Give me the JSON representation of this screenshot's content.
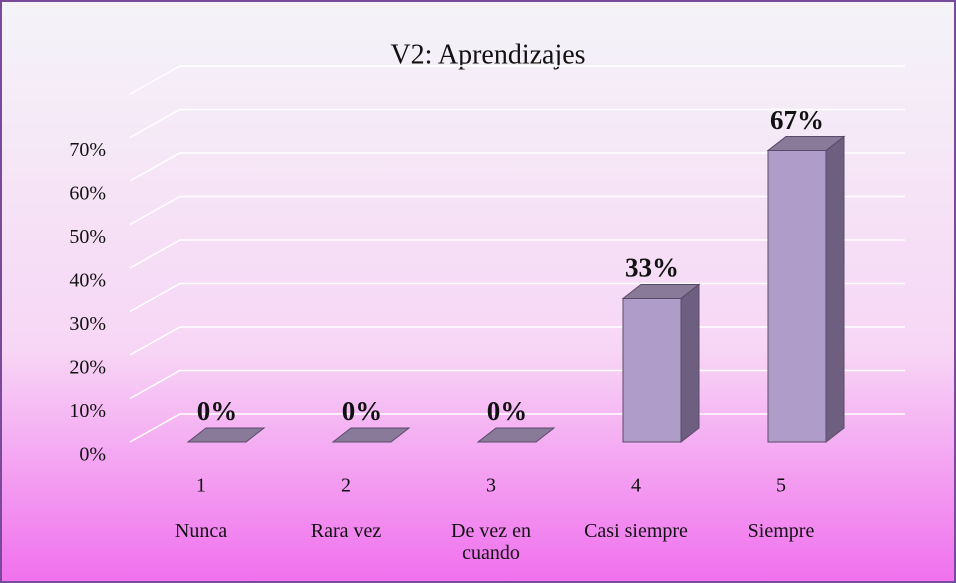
{
  "chart_data": {
    "type": "bar3d",
    "title": "V2: Aprendizajes",
    "categories": [
      "1",
      "2",
      "3",
      "4",
      "5"
    ],
    "category_labels": [
      "Nunca",
      "Rara vez",
      "De vez en cuando",
      "Casi siempre",
      "Siempre"
    ],
    "values": [
      0,
      0,
      0,
      33,
      67
    ],
    "value_labels": [
      "0%",
      "0%",
      "0%",
      "33%",
      "67%"
    ],
    "color": "#b09cc8",
    "ylim": [
      0,
      80
    ],
    "yticks": [
      {
        "value": 0,
        "label": "0%"
      },
      {
        "value": 10,
        "label": "10%"
      },
      {
        "value": 20,
        "label": "20%"
      },
      {
        "value": 30,
        "label": "30%"
      },
      {
        "value": 40,
        "label": "40%"
      },
      {
        "value": 50,
        "label": "50%"
      },
      {
        "value": 60,
        "label": "60%"
      },
      {
        "value": 70,
        "label": "70%"
      }
    ],
    "grid": true
  }
}
